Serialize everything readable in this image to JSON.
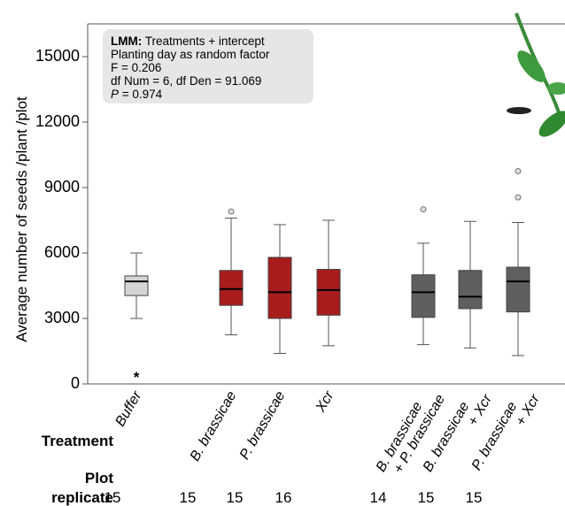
{
  "chart_data": {
    "type": "box",
    "y_label": "Average number of seeds /plant /plot",
    "ylim": [
      0,
      16500
    ],
    "yticks": [
      0,
      3000,
      6000,
      9000,
      12000,
      15000
    ],
    "category_lines": [
      [
        "Buffer"
      ],
      [
        "B. brassicae"
      ],
      [
        "P. brassicae"
      ],
      [
        "Xcr"
      ],
      [
        "B. brassicae",
        "+ P. brassicae"
      ],
      [
        "B. brassicae",
        "+ Xcr"
      ],
      [
        "P. brassicae",
        "+ Xcr"
      ]
    ],
    "colors": [
      "#d4d4d4",
      "#a81c1c",
      "#a81c1c",
      "#a81c1c",
      "#5f5f5f",
      "#5f5f5f",
      "#5f5f5f"
    ],
    "boxes": [
      {
        "low": 3000,
        "q1": 4050,
        "median": 4700,
        "q3": 4950,
        "high": 6000,
        "outliers": []
      },
      {
        "low": 2250,
        "q1": 3600,
        "median": 4350,
        "q3": 5200,
        "high": 7600,
        "outliers": [
          7900
        ]
      },
      {
        "low": 1400,
        "q1": 3000,
        "median": 4200,
        "q3": 5800,
        "high": 7300,
        "outliers": []
      },
      {
        "low": 1750,
        "q1": 3150,
        "median": 4300,
        "q3": 5250,
        "high": 7500,
        "outliers": []
      },
      {
        "low": 1800,
        "q1": 3050,
        "median": 4200,
        "q3": 5000,
        "high": 6450,
        "outliers": [
          8000
        ]
      },
      {
        "low": 1650,
        "q1": 3450,
        "median": 4000,
        "q3": 5200,
        "high": 7450,
        "outliers": []
      },
      {
        "low": 1300,
        "q1": 3300,
        "median": 4700,
        "q3": 5350,
        "high": 7400,
        "outliers": [
          8550,
          9750
        ]
      }
    ],
    "significance_mark": "*",
    "stats_box": {
      "bold": "LMM:",
      "first_line": " Treatments + intercept",
      "lines": [
        "Planting day as random factor",
        "F = 0.206",
        "df Num = 6, df Den = 91.069"
      ],
      "p_symbol": "P",
      "p_text": " = 0.974"
    },
    "row_labels": {
      "treatment": "Treatment",
      "replicate_1": "Plot",
      "replicate_2": "replicate"
    },
    "replicates": [
      15,
      15,
      15,
      16,
      14,
      15,
      15
    ]
  }
}
